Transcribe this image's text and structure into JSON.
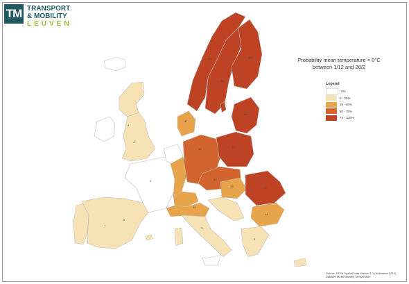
{
  "logo": {
    "mark": "TM",
    "line1": "TRANSPORT",
    "line2": "& MOBILITY",
    "line3": "LEUVEN"
  },
  "title_line1": "Probability mean temperature < 0°C",
  "title_line2": "between 1/12 and 28/2",
  "legend": {
    "title": "Legend",
    "items": [
      {
        "label": "0%",
        "color": "#ffffff"
      },
      {
        "label": "0 - 25%",
        "color": "#f6e2b5"
      },
      {
        "label": "25 - 50%",
        "color": "#e8a44a"
      },
      {
        "label": "50 - 75%",
        "color": "#d2642d"
      },
      {
        "label": "75 - 100%",
        "color": "#be4325"
      }
    ]
  },
  "source_line1": "Source: EFSA Spatial Data Version 1.1 (November 2012)",
  "source_line2": "Dataset: Mean Monthly Temperature"
}
